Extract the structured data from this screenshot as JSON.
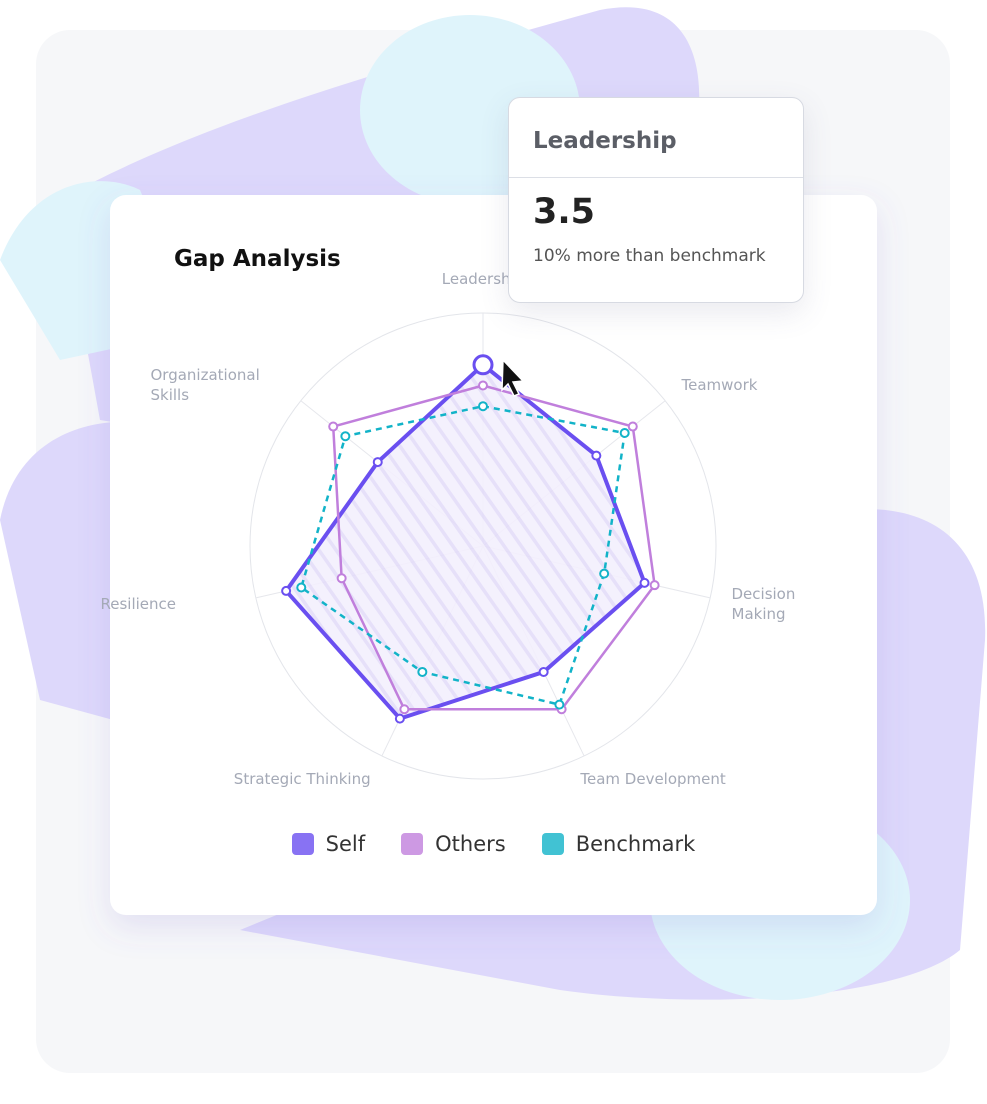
{
  "chart_data": {
    "type": "radar",
    "title": "Gap Analysis",
    "categories": [
      "Leadership",
      "Teamwork",
      "Decision Making",
      "Team Development",
      "Strategic Thinking",
      "Resilience",
      "Organizational Skills"
    ],
    "series": [
      {
        "name": "Self",
        "color": "#6a4ff0",
        "line_style": "solid",
        "values": [
          3.5,
          2.8,
          3.2,
          2.7,
          3.7,
          3.9,
          2.6
        ]
      },
      {
        "name": "Others",
        "color": "#c07fdc",
        "line_style": "solid",
        "values": [
          3.1,
          3.7,
          3.4,
          3.5,
          3.5,
          2.8,
          3.7
        ]
      },
      {
        "name": "Benchmark",
        "color": "#12b3c8",
        "line_style": "dashed",
        "values": [
          2.7,
          3.5,
          2.4,
          3.4,
          2.7,
          3.6,
          3.4
        ]
      }
    ],
    "ylim": [
      0,
      4.5
    ],
    "grid": true,
    "tooltip_note": "10% more than benchmark"
  }
}
